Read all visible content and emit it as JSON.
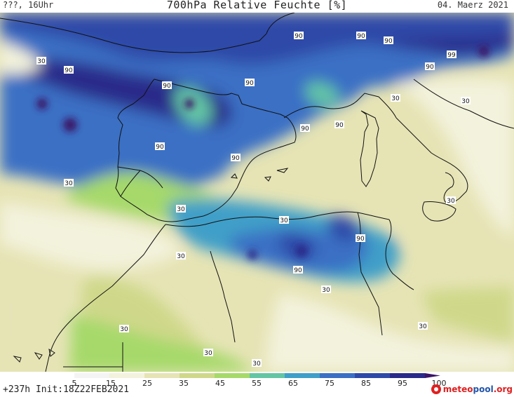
{
  "header": {
    "valid_time": "???, 16Uhr",
    "title": "700hPa Relative Feuchte [%]",
    "date": "04. Maerz 2021"
  },
  "footer": {
    "run_info": "+237h  Init:18Z22FEB2021",
    "brand_part1": "meteo",
    "brand_part2": "pool",
    "brand_part3": ".org"
  },
  "legend": {
    "unit": "%",
    "ticks": [
      "5",
      "15",
      "25",
      "35",
      "45",
      "55",
      "65",
      "75",
      "85",
      "95",
      "100"
    ],
    "colors": [
      "#f4f4f4",
      "#f3f2dc",
      "#e6e4b5",
      "#cfd88a",
      "#a6d96a",
      "#63c5a4",
      "#3f9fc8",
      "#3b6fc4",
      "#2e49a8",
      "#2a2a8a",
      "#3a1466"
    ]
  },
  "map": {
    "region": "Western Mediterranean",
    "contour_labels": [
      "30",
      "90",
      "90",
      "90",
      "90",
      "90",
      "99",
      "90",
      "90",
      "30",
      "90",
      "90",
      "90",
      "30",
      "90",
      "30",
      "30",
      "90",
      "90",
      "30",
      "30",
      "30",
      "30",
      "30",
      "30",
      "30",
      "30"
    ]
  }
}
